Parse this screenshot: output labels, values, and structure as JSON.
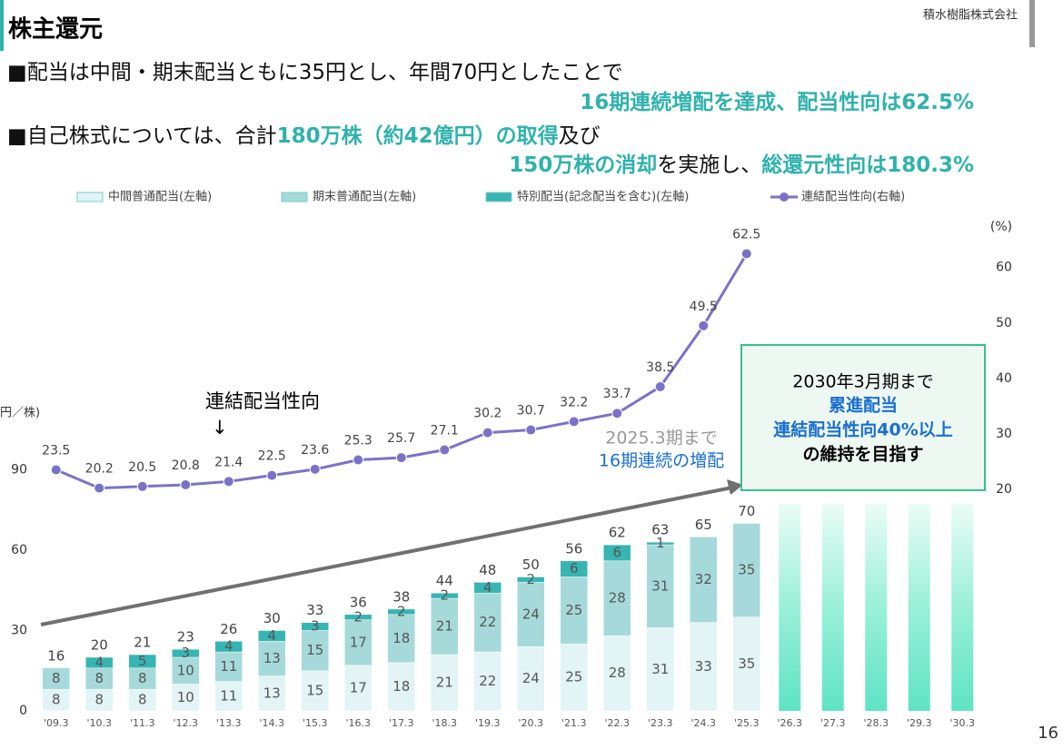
{
  "header": {
    "title": "株主還元",
    "company": "積水樹脂株式会社",
    "page": "16"
  },
  "bullets": [
    {
      "lines": [
        [
          "■配当は中間・期末配当ともに35円とし、年間70円としたことで"
        ],
        [
          "16期連続増配を達成、配当性向は62.5%"
        ]
      ]
    },
    {
      "lines": [
        [
          "■自己株式については、合計",
          "180万株（約42億円）の取得",
          "及び"
        ],
        [
          "150万株の消却",
          "を実施し、",
          "総還元性向は180.3%"
        ]
      ]
    }
  ],
  "chart_data": {
    "type": "bar",
    "y_label": "円／株)",
    "y2_label": "(%)",
    "categories": [
      "'09.3",
      "'10.3",
      "'11.3",
      "'12.3",
      "'13.3",
      "'14.3",
      "'15.3",
      "'16.3",
      "'17.3",
      "'18.3",
      "'19.3",
      "'20.3",
      "'21.3",
      "'22.3",
      "'23.3",
      "'24.3",
      "'25.3",
      "'26.3",
      "'27.3",
      "'28.3",
      "'29.3",
      "'30.3"
    ],
    "series": [
      {
        "name": "中間普通配当(左軸)",
        "color": "#e2f4f5",
        "values": [
          8,
          8,
          8,
          10,
          11,
          13,
          15,
          17,
          18,
          21,
          22,
          24,
          25,
          28,
          31,
          33,
          35,
          null,
          null,
          null,
          null,
          null
        ]
      },
      {
        "name": "期末普通配当(左軸)",
        "color": "#a6dada",
        "values": [
          8,
          8,
          8,
          10,
          11,
          13,
          15,
          17,
          18,
          21,
          22,
          24,
          25,
          28,
          31,
          32,
          35,
          null,
          null,
          null,
          null,
          null
        ]
      },
      {
        "name": "特別配当(記念配当を含む)(左軸)",
        "color": "#36b5b3",
        "values": [
          null,
          4,
          5,
          3,
          4,
          4,
          3,
          2,
          2,
          2,
          4,
          2,
          6,
          6,
          1,
          null,
          null,
          null,
          null,
          null,
          null,
          null
        ]
      },
      {
        "name": "連結配当性向(右軸)",
        "color": "#7a72c8",
        "axis": "y2",
        "values": [
          23.5,
          20.2,
          20.5,
          20.8,
          21.4,
          22.5,
          23.6,
          25.3,
          25.7,
          27.1,
          30.2,
          30.7,
          32.2,
          33.7,
          38.5,
          49.5,
          62.5,
          null,
          null,
          null,
          null,
          null
        ]
      }
    ],
    "totals": [
      16,
      20,
      21,
      23,
      26,
      30,
      33,
      36,
      38,
      44,
      48,
      50,
      56,
      62,
      63,
      65,
      70,
      null,
      null,
      null,
      null,
      null
    ],
    "ylim": [
      0,
      180
    ],
    "yticks": [
      0,
      30,
      60,
      90
    ],
    "y2lim": [
      -20,
      67
    ],
    "y2ticks": [
      20,
      30,
      40,
      50,
      60
    ],
    "grid": false,
    "annotations": {
      "line_note": [
        "連結配当性向",
        "↓"
      ],
      "streak": [
        "2025.3期まで",
        "16期連続の増配"
      ],
      "goal": [
        "2030年3月期まで",
        "累進配当",
        "連結配当性向40%以上",
        "の維持を目指す"
      ]
    }
  }
}
